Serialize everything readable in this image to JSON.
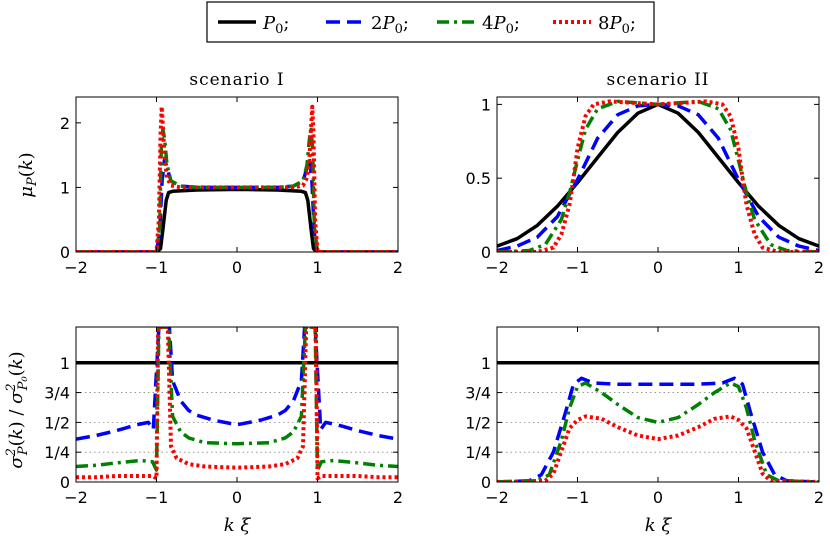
{
  "legend": {
    "entries": [
      {
        "label": "P",
        "sub": "0",
        "suffix": ";",
        "prefix": "",
        "color": "#000000",
        "dash": "solid"
      },
      {
        "label": "P",
        "sub": "0",
        "suffix": ";",
        "prefix": "2",
        "color": "#0000ff",
        "dash": "dash"
      },
      {
        "label": "P",
        "sub": "0",
        "suffix": ";",
        "prefix": "4",
        "color": "#008000",
        "dash": "dashdot"
      },
      {
        "label": "P",
        "sub": "0",
        "suffix": ";",
        "prefix": "8",
        "color": "#ff0000",
        "dash": "dot"
      }
    ]
  },
  "axis_labels": {
    "top_y": "μP(k)",
    "bottom_y": "σ²P(k) / σ²P0(k)",
    "x": "k ξ"
  },
  "chart_data": [
    {
      "type": "line",
      "title": "scenario I",
      "xlabel": "k ξ",
      "ylabel": "μP(k)",
      "xlim": [
        -2,
        2
      ],
      "ylim": [
        0,
        2.4
      ],
      "xticks": [
        "-2",
        "-1",
        "0",
        "1",
        "2"
      ],
      "yticks": [
        "0",
        "1",
        "2"
      ],
      "ytick_values": [
        0,
        1,
        2
      ],
      "series": [
        {
          "name": "P0",
          "x": [
            -2,
            -1.0,
            -0.95,
            -0.92,
            -0.88,
            -0.85,
            -0.8,
            -0.5,
            0,
            0.5,
            0.8,
            0.85,
            0.88,
            0.92,
            0.95,
            1.0,
            2
          ],
          "y": [
            0,
            0,
            0.05,
            0.35,
            0.8,
            0.92,
            0.94,
            0.96,
            0.97,
            0.96,
            0.94,
            0.92,
            0.8,
            0.35,
            0.05,
            0,
            0
          ]
        },
        {
          "name": "2P0",
          "x": [
            -2,
            -1.0,
            -0.96,
            -0.93,
            -0.9,
            -0.87,
            -0.82,
            -0.7,
            -0.5,
            0,
            0.5,
            0.7,
            0.82,
            0.87,
            0.9,
            0.93,
            0.96,
            1.0,
            2
          ],
          "y": [
            0,
            0,
            0.3,
            1.1,
            1.45,
            1.3,
            1.1,
            1.02,
            1.0,
            1.0,
            1.0,
            1.02,
            1.1,
            1.3,
            1.45,
            1.1,
            0.3,
            0,
            0
          ]
        },
        {
          "name": "4P0",
          "x": [
            -2,
            -1.0,
            -0.96,
            -0.94,
            -0.92,
            -0.9,
            -0.87,
            -0.82,
            -0.7,
            -0.5,
            0,
            0.5,
            0.7,
            0.82,
            0.87,
            0.9,
            0.92,
            0.94,
            0.96,
            1.0,
            2
          ],
          "y": [
            0,
            0,
            0.4,
            1.6,
            1.9,
            1.75,
            1.35,
            1.1,
            1.02,
            1.0,
            1.0,
            1.0,
            1.02,
            1.1,
            1.35,
            1.75,
            1.9,
            1.6,
            0.4,
            0,
            0
          ]
        },
        {
          "name": "8P0",
          "x": [
            -2,
            -1.0,
            -0.97,
            -0.95,
            -0.935,
            -0.92,
            -0.9,
            -0.87,
            -0.82,
            -0.7,
            -0.5,
            0,
            0.5,
            0.7,
            0.82,
            0.87,
            0.9,
            0.92,
            0.935,
            0.95,
            0.97,
            1.0,
            2
          ],
          "y": [
            0,
            0,
            0.5,
            1.8,
            2.25,
            1.95,
            1.45,
            1.15,
            1.03,
            1.0,
            1.0,
            1.0,
            1.0,
            1.0,
            1.03,
            1.15,
            1.45,
            1.95,
            2.25,
            1.8,
            0.5,
            0,
            0
          ]
        }
      ]
    },
    {
      "type": "line",
      "title": "scenario II",
      "xlabel": "k ξ",
      "ylabel": "",
      "xlim": [
        -2,
        2
      ],
      "ylim": [
        0,
        1.05
      ],
      "xticks": [
        "-2",
        "-1",
        "0",
        "1",
        "2"
      ],
      "yticks": [
        "0",
        "0.5",
        "1"
      ],
      "ytick_values": [
        0,
        0.5,
        1
      ],
      "series": [
        {
          "name": "P0",
          "x": [
            -2,
            -1.75,
            -1.5,
            -1.25,
            -1,
            -0.75,
            -0.5,
            -0.25,
            0,
            0.25,
            0.5,
            0.75,
            1,
            1.25,
            1.5,
            1.75,
            2
          ],
          "y": [
            0.04,
            0.09,
            0.18,
            0.31,
            0.47,
            0.64,
            0.81,
            0.94,
            1.0,
            0.94,
            0.81,
            0.64,
            0.47,
            0.31,
            0.18,
            0.09,
            0.04
          ]
        },
        {
          "name": "2P0",
          "x": [
            -2,
            -1.75,
            -1.5,
            -1.25,
            -1,
            -0.75,
            -0.5,
            -0.25,
            0,
            0.25,
            0.5,
            0.75,
            1,
            1.25,
            1.5,
            1.75,
            2
          ],
          "y": [
            0.01,
            0.04,
            0.1,
            0.24,
            0.49,
            0.77,
            0.93,
            0.99,
            1.0,
            0.99,
            0.93,
            0.77,
            0.49,
            0.24,
            0.1,
            0.04,
            0.01
          ]
        },
        {
          "name": "4P0",
          "x": [
            -2,
            -1.6,
            -1.4,
            -1.2,
            -1.1,
            -1,
            -0.9,
            -0.75,
            -0.5,
            -0.25,
            0,
            0.25,
            0.5,
            0.75,
            0.9,
            1,
            1.1,
            1.2,
            1.4,
            1.6,
            2
          ],
          "y": [
            0,
            0.01,
            0.05,
            0.22,
            0.4,
            0.62,
            0.83,
            0.97,
            1.02,
            1.01,
            1.0,
            1.01,
            1.02,
            0.97,
            0.83,
            0.62,
            0.4,
            0.22,
            0.05,
            0.01,
            0
          ]
        },
        {
          "name": "8P0",
          "x": [
            -2,
            -1.5,
            -1.3,
            -1.2,
            -1.1,
            -1.05,
            -1,
            -0.9,
            -0.8,
            -0.6,
            -0.3,
            0,
            0.3,
            0.6,
            0.8,
            0.9,
            1,
            1.05,
            1.1,
            1.2,
            1.3,
            1.5,
            2
          ],
          "y": [
            0,
            0,
            0.03,
            0.12,
            0.32,
            0.5,
            0.7,
            0.92,
            1.0,
            1.02,
            1.01,
            1.0,
            1.01,
            1.02,
            1.0,
            0.92,
            0.7,
            0.5,
            0.32,
            0.12,
            0.03,
            0,
            0
          ]
        }
      ]
    },
    {
      "type": "line",
      "title": "",
      "xlabel": "k ξ",
      "ylabel": "σ²P(k) / σ²P0(k)",
      "xlim": [
        -2,
        2
      ],
      "ylim": [
        0,
        1.3
      ],
      "xticks": [
        "-2",
        "-1",
        "0",
        "1",
        "2"
      ],
      "yticks": [
        "0",
        "1/4",
        "1/2",
        "3/4",
        "1"
      ],
      "ytick_values": [
        0,
        0.25,
        0.5,
        0.75,
        1
      ],
      "dotted_grid": [
        0.25,
        0.5,
        0.75
      ],
      "series": [
        {
          "name": "P0",
          "x": [
            -2,
            2
          ],
          "y": [
            1,
            1
          ]
        },
        {
          "name": "2P0",
          "x": [
            -2,
            -1.75,
            -1.5,
            -1.25,
            -1.1,
            -1.04,
            -0.97,
            -0.94,
            -0.92,
            -0.9,
            -0.88,
            -0.86,
            -0.84,
            -0.8,
            -0.7,
            -0.6,
            -0.5,
            -0.3,
            0,
            0.3,
            0.5,
            0.6,
            0.7,
            0.8,
            0.84,
            0.86,
            0.88,
            0.9,
            0.92,
            0.94,
            0.97,
            1.04,
            1.1,
            1.25,
            1.5,
            1.75,
            2
          ],
          "y": [
            0.36,
            0.39,
            0.43,
            0.48,
            0.5,
            0.44,
            1.3,
            1.3,
            1.3,
            1.3,
            1.3,
            1.3,
            1.3,
            0.85,
            0.68,
            0.6,
            0.56,
            0.52,
            0.48,
            0.52,
            0.56,
            0.6,
            0.68,
            0.85,
            1.3,
            1.3,
            1.3,
            1.3,
            1.3,
            1.3,
            1.3,
            0.44,
            0.5,
            0.48,
            0.43,
            0.39,
            0.36
          ]
        },
        {
          "name": "4P0",
          "x": [
            -2,
            -1.75,
            -1.5,
            -1.2,
            -1.05,
            -1.0,
            -0.97,
            -0.95,
            -0.93,
            -0.91,
            -0.89,
            -0.87,
            -0.85,
            -0.8,
            -0.7,
            -0.6,
            -0.4,
            0,
            0.4,
            0.6,
            0.7,
            0.8,
            0.85,
            0.87,
            0.89,
            0.91,
            0.93,
            0.95,
            0.97,
            1.0,
            1.05,
            1.2,
            1.5,
            1.75,
            2
          ],
          "y": [
            0.13,
            0.14,
            0.16,
            0.18,
            0.17,
            0.1,
            1.3,
            1.3,
            1.3,
            1.3,
            1.3,
            1.3,
            1.3,
            0.55,
            0.42,
            0.37,
            0.33,
            0.32,
            0.33,
            0.37,
            0.42,
            0.55,
            1.3,
            1.3,
            1.3,
            1.3,
            1.3,
            1.3,
            1.3,
            0.1,
            0.17,
            0.18,
            0.16,
            0.14,
            0.13
          ]
        },
        {
          "name": "8P0",
          "x": [
            -2,
            -1.75,
            -1.5,
            -1.2,
            -1.05,
            -1.0,
            -0.98,
            -0.96,
            -0.94,
            -0.92,
            -0.9,
            -0.88,
            -0.86,
            -0.82,
            -0.75,
            -0.6,
            -0.4,
            0,
            0.4,
            0.6,
            0.75,
            0.82,
            0.86,
            0.88,
            0.9,
            0.92,
            0.94,
            0.96,
            0.98,
            1.0,
            1.05,
            1.2,
            1.5,
            1.75,
            2
          ],
          "y": [
            0.04,
            0.04,
            0.05,
            0.05,
            0.05,
            0.03,
            1.3,
            1.3,
            1.3,
            1.3,
            1.3,
            1.3,
            1.3,
            0.3,
            0.2,
            0.15,
            0.13,
            0.12,
            0.13,
            0.15,
            0.2,
            0.3,
            1.3,
            1.3,
            1.3,
            1.3,
            1.3,
            1.3,
            1.3,
            0.03,
            0.05,
            0.05,
            0.05,
            0.04,
            0.04
          ]
        }
      ]
    },
    {
      "type": "line",
      "title": "",
      "xlabel": "k ξ",
      "ylabel": "",
      "xlim": [
        -2,
        2
      ],
      "ylim": [
        0,
        1.3
      ],
      "xticks": [
        "-2",
        "-1",
        "0",
        "1",
        "2"
      ],
      "yticks": [
        "0",
        "1/4",
        "1/2",
        "3/4",
        "1"
      ],
      "ytick_values": [
        0,
        0.25,
        0.5,
        0.75,
        1
      ],
      "dotted_grid": [
        0.25,
        0.5,
        0.75
      ],
      "series": [
        {
          "name": "P0",
          "x": [
            -2,
            2
          ],
          "y": [
            1,
            1
          ]
        },
        {
          "name": "2P0",
          "x": [
            -2,
            -1.6,
            -1.45,
            -1.3,
            -1.15,
            -1.05,
            -0.95,
            -0.8,
            -0.5,
            0,
            0.5,
            0.8,
            0.95,
            1.05,
            1.15,
            1.3,
            1.45,
            1.6,
            2
          ],
          "y": [
            0,
            0.01,
            0.06,
            0.25,
            0.58,
            0.82,
            0.87,
            0.83,
            0.82,
            0.82,
            0.82,
            0.83,
            0.87,
            0.82,
            0.58,
            0.25,
            0.06,
            0.01,
            0
          ]
        },
        {
          "name": "4P0",
          "x": [
            -2,
            -1.5,
            -1.35,
            -1.2,
            -1.1,
            -1.0,
            -0.9,
            -0.7,
            -0.5,
            -0.25,
            0,
            0.25,
            0.5,
            0.7,
            0.9,
            1.0,
            1.1,
            1.2,
            1.35,
            1.5,
            2
          ],
          "y": [
            0,
            0.01,
            0.06,
            0.35,
            0.62,
            0.8,
            0.83,
            0.75,
            0.65,
            0.54,
            0.5,
            0.54,
            0.65,
            0.75,
            0.83,
            0.8,
            0.62,
            0.35,
            0.06,
            0.01,
            0
          ]
        },
        {
          "name": "8P0",
          "x": [
            -2,
            -1.4,
            -1.3,
            -1.2,
            -1.1,
            -1.0,
            -0.9,
            -0.7,
            -0.5,
            -0.25,
            0,
            0.25,
            0.5,
            0.7,
            0.9,
            1.0,
            1.1,
            1.2,
            1.3,
            1.4,
            2
          ],
          "y": [
            0,
            0.01,
            0.07,
            0.26,
            0.45,
            0.52,
            0.55,
            0.53,
            0.46,
            0.39,
            0.36,
            0.39,
            0.46,
            0.53,
            0.55,
            0.52,
            0.45,
            0.26,
            0.07,
            0.01,
            0
          ]
        }
      ]
    }
  ]
}
